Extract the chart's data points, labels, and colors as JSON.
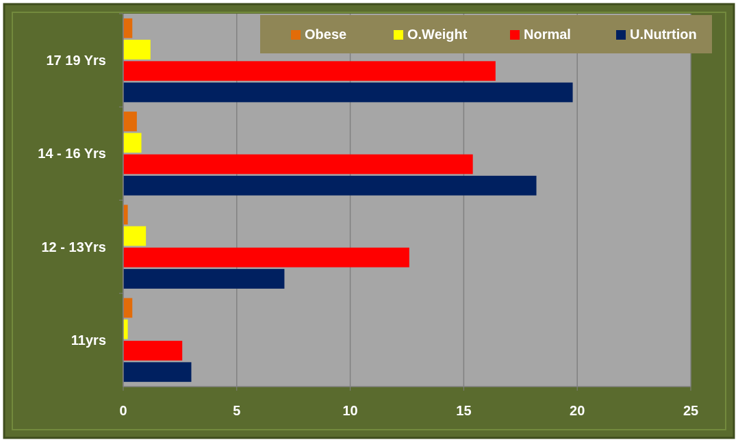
{
  "chart_data": {
    "type": "bar",
    "orientation": "horizontal",
    "categories": [
      "17 19 Yrs",
      "14 - 16 Yrs",
      "12 - 13Yrs",
      "11yrs"
    ],
    "series": [
      {
        "name": "Obese",
        "color": "#e36c09",
        "values": [
          0.4,
          0.6,
          0.2,
          0.4
        ]
      },
      {
        "name": "O.Weight",
        "color": "#ffff00",
        "values": [
          1.2,
          0.8,
          1.0,
          0.2
        ]
      },
      {
        "name": "Normal",
        "color": "#ff0000",
        "values": [
          16.4,
          15.4,
          12.6,
          2.6
        ]
      },
      {
        "name": "U.Nutrtion",
        "color": "#002060",
        "values": [
          19.8,
          18.2,
          7.1,
          3.0
        ]
      }
    ],
    "xlim": [
      0,
      25
    ],
    "xticks": [
      0,
      5,
      10,
      15,
      20,
      25
    ],
    "grid": "x",
    "legend": "top right"
  }
}
